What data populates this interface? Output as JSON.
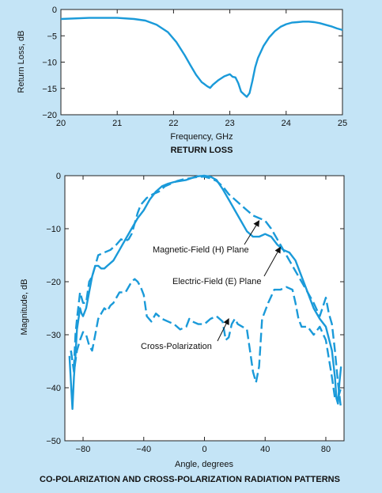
{
  "chart_data": [
    {
      "type": "line",
      "caption": "RETURN LOSS",
      "xlabel": "Frequency, GHz",
      "ylabel": "Return Loss, dB",
      "xlim": [
        20,
        25
      ],
      "ylim": [
        -20,
        0
      ],
      "xticks": [
        20,
        21,
        22,
        23,
        24,
        25
      ],
      "yticks": [
        0,
        -5,
        -10,
        -15,
        -20
      ],
      "xtick_labels": [
        "20",
        "21",
        "22",
        "23",
        "24",
        "25"
      ],
      "ytick_labels": [
        "0",
        "−5",
        "−10",
        "−15",
        "−20"
      ],
      "grid": false,
      "color": "#1a9ad9",
      "series": [
        {
          "style": "solid",
          "x": [
            20.0,
            20.5,
            21.0,
            21.3,
            21.5,
            21.7,
            21.9,
            22.05,
            22.2,
            22.3,
            22.4,
            22.5,
            22.55,
            22.6,
            22.65,
            22.7,
            22.8,
            22.9,
            23.0,
            23.05,
            23.1,
            23.15,
            23.2,
            23.25,
            23.3,
            23.35,
            23.4,
            23.45,
            23.5,
            23.6,
            23.7,
            23.8,
            23.9,
            24.0,
            24.1,
            24.2,
            24.3,
            24.4,
            24.5,
            24.6,
            24.7,
            24.8,
            24.9,
            25.0
          ],
          "y": [
            -1.8,
            -1.6,
            -1.6,
            -1.8,
            -2.1,
            -2.9,
            -4.3,
            -6.2,
            -8.7,
            -10.6,
            -12.4,
            -13.8,
            -14.2,
            -14.6,
            -14.9,
            -14.3,
            -13.4,
            -12.7,
            -12.3,
            -12.8,
            -12.9,
            -14.0,
            -15.6,
            -16.1,
            -16.6,
            -15.9,
            -13.6,
            -11.0,
            -9.2,
            -6.9,
            -5.3,
            -4.1,
            -3.3,
            -2.8,
            -2.5,
            -2.4,
            -2.3,
            -2.3,
            -2.4,
            -2.6,
            -2.9,
            -3.2,
            -3.6,
            -3.9
          ]
        }
      ]
    },
    {
      "type": "line",
      "caption": "CO-POLARIZATION AND CROSS-POLARIZATION RADIATION PATTERNS",
      "xlabel": "Angle, degrees",
      "ylabel": "Magnitude, dB",
      "xlim": [
        -92,
        92
      ],
      "ylim": [
        -50,
        0
      ],
      "xticks": [
        -80,
        -40,
        0,
        40,
        80
      ],
      "yticks": [
        0,
        -10,
        -20,
        -30,
        -40,
        -50
      ],
      "xtick_labels": [
        "−80",
        "−40",
        "0",
        "40",
        "80"
      ],
      "ytick_labels": [
        "0",
        "−10",
        "−20",
        "−30",
        "−40",
        "−50"
      ],
      "grid": false,
      "color": "#1a9ad9",
      "series": [
        {
          "label": "Magnetic-Field (H) Plane",
          "style": "dashed",
          "x": [
            -88,
            -87,
            -86,
            -85,
            -84,
            -82,
            -80,
            -78,
            -76,
            -74,
            -72,
            -70,
            -66,
            -62,
            -58,
            -55,
            -52,
            -50,
            -48,
            -46,
            -44,
            -42,
            -38,
            -34,
            -30,
            -26,
            -22,
            -18,
            -14,
            -10,
            -6,
            -2,
            0,
            4,
            8,
            12,
            16,
            20,
            24,
            28,
            32,
            36,
            40,
            44,
            48,
            52,
            56,
            60,
            64,
            68,
            72,
            76,
            80,
            82,
            84,
            86,
            88,
            90
          ],
          "y": [
            -33,
            -35,
            -36,
            -30,
            -27,
            -22,
            -24,
            -24,
            -20,
            -19,
            -17,
            -15,
            -14.5,
            -14,
            -13,
            -12,
            -12.3,
            -12,
            -11,
            -9,
            -7,
            -5.5,
            -4.2,
            -3.5,
            -3,
            -2,
            -1.5,
            -1,
            -0.7,
            -0.5,
            -0.3,
            -0.2,
            -0.2,
            -0.5,
            -1,
            -2,
            -3.5,
            -4.5,
            -5.5,
            -6.5,
            -7.5,
            -8,
            -8.5,
            -10,
            -12,
            -14,
            -16,
            -18,
            -20,
            -22,
            -24,
            -26.5,
            -23,
            -26,
            -28,
            -33,
            -39,
            -44
          ]
        },
        {
          "label": "Electric-Field (E) Plane",
          "style": "solid",
          "x": [
            -89,
            -88,
            -87,
            -86,
            -85,
            -84,
            -83,
            -82,
            -81,
            -80,
            -78,
            -76,
            -74,
            -72,
            -70,
            -68,
            -66,
            -64,
            -60,
            -56,
            -52,
            -48,
            -44,
            -40,
            -36,
            -32,
            -28,
            -24,
            -20,
            -16,
            -12,
            -8,
            -4,
            0,
            4,
            8,
            12,
            16,
            20,
            24,
            28,
            32,
            36,
            40,
            44,
            48,
            52,
            56,
            60,
            64,
            68,
            72,
            76,
            80,
            84,
            86,
            87,
            88,
            89,
            90
          ],
          "y": [
            -34,
            -39,
            -44,
            -38,
            -34,
            -29,
            -27,
            -25,
            -26,
            -26.5,
            -25,
            -22,
            -19,
            -17,
            -17,
            -17.5,
            -17.5,
            -17,
            -16,
            -14,
            -12,
            -10,
            -8,
            -6.5,
            -4.5,
            -3,
            -2,
            -1.5,
            -1.2,
            -1,
            -0.8,
            -0.4,
            -0.1,
            0,
            -0.2,
            -0.8,
            -2.5,
            -4.5,
            -6.5,
            -8.5,
            -10.5,
            -11.5,
            -11.5,
            -11,
            -11.5,
            -13,
            -14,
            -14.5,
            -16,
            -19,
            -22,
            -25,
            -27,
            -28.5,
            -33,
            -38,
            -42,
            -43,
            -39,
            -36
          ]
        },
        {
          "label": "Cross-Polarization",
          "style": "dashed",
          "x": [
            -88,
            -86,
            -84,
            -82,
            -80,
            -78,
            -76,
            -74,
            -72,
            -70,
            -68,
            -66,
            -64,
            -62,
            -60,
            -56,
            -52,
            -48,
            -46,
            -44,
            -42,
            -40,
            -38,
            -35,
            -32,
            -28,
            -24,
            -20,
            -16,
            -12,
            -10,
            -8,
            -4,
            0,
            4,
            8,
            12,
            14,
            16,
            18,
            20,
            22,
            25,
            28,
            30,
            32,
            34,
            36,
            38,
            42,
            46,
            50,
            54,
            58,
            60,
            62,
            64,
            68,
            72,
            76,
            80,
            84,
            86,
            88,
            90
          ],
          "y": [
            -33,
            -37,
            -33,
            -31,
            -29.5,
            -30,
            -32,
            -33,
            -30,
            -27,
            -26,
            -25,
            -25.5,
            -24.5,
            -24,
            -22,
            -22,
            -20,
            -19.5,
            -20,
            -21,
            -22.5,
            -26.5,
            -27.5,
            -26,
            -27,
            -27.5,
            -28,
            -29,
            -28.5,
            -27,
            -27.5,
            -28,
            -28,
            -27,
            -26.5,
            -27.5,
            -31,
            -30.5,
            -28,
            -27,
            -28,
            -28.5,
            -29,
            -33,
            -37,
            -39,
            -36,
            -27,
            -24,
            -21.5,
            -21.5,
            -21,
            -21.5,
            -24,
            -27,
            -28.5,
            -28.5,
            -30,
            -28.5,
            -31,
            -38,
            -42,
            -42,
            -40
          ]
        }
      ],
      "annotations": [
        {
          "text": "Magnetic-Field (H) Plane",
          "target": [
            36,
            -8.5
          ]
        },
        {
          "text": "Electric-Field (E) Plane",
          "target": [
            50,
            -13.5
          ]
        },
        {
          "text": "Cross-Polarization",
          "target": [
            16,
            -27
          ]
        }
      ]
    }
  ]
}
